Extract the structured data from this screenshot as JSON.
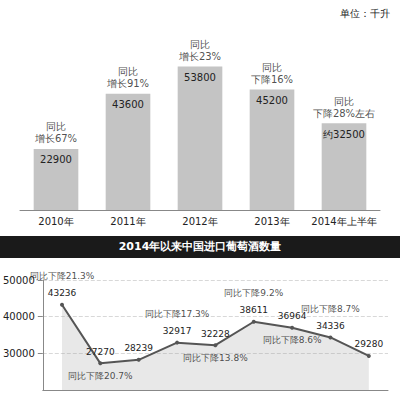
{
  "chart_data": [
    {
      "type": "bar",
      "subtitle": "单位：千升",
      "categories": [
        "2010年",
        "2011年",
        "2012年",
        "2013年",
        "2014年上半年"
      ],
      "values": [
        22900,
        43600,
        53800,
        45200,
        32500
      ],
      "value_labels": [
        "22900",
        "43600",
        "53800",
        "45200",
        "约32500"
      ],
      "annotations": [
        "同比增长67%",
        "同比增长91%",
        "同比增长23%",
        "同比下降16%",
        "同比下降28%左右"
      ],
      "color": "#c4c4c4",
      "ylim": [
        0,
        60000
      ],
      "data_labels": true,
      "tick_labels": "x"
    },
    {
      "type": "line",
      "title": "2014年以来中国进口葡萄酒数量",
      "categories": [
        null,
        null,
        null,
        null,
        null,
        null,
        null,
        null,
        null
      ],
      "values": [
        43236,
        27270,
        28239,
        32917,
        32228,
        38611,
        36964,
        34336,
        29280
      ],
      "annotations": [
        "同比下降21.3%",
        "同比下降20.7%",
        null,
        "同比下降17.3%",
        "同比下降13.8%",
        "同比下降9.2%",
        "同比下降8.6%",
        "同比下降8.7%",
        null
      ],
      "color": "#555555",
      "ylim": [
        20000,
        50000
      ],
      "yticks": [
        30000,
        40000,
        50000
      ],
      "grid": true,
      "data_labels": true,
      "marker": "circle",
      "tick_labels": "y"
    }
  ]
}
